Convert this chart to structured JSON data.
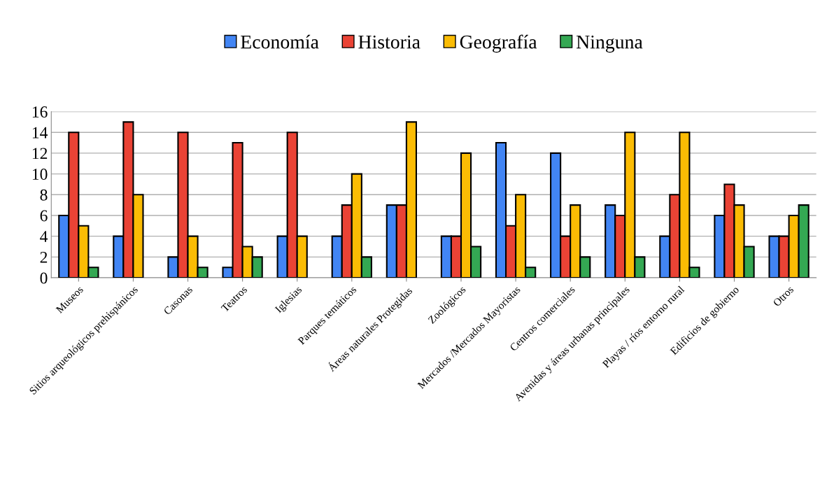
{
  "chart_data": {
    "type": "bar",
    "categories": [
      "Museos",
      "Sitios arqueológicos prehispánicos",
      "Casonas",
      "Teatros",
      "Iglesias",
      "Parques temáticos",
      "Áreas naturales Protegidas",
      "Zoológicos",
      "Mercados /Mercados Mayoristas",
      "Centros comerciales",
      "Avenidas y áreas urbanas principales",
      "Playas / ríos entorno rural",
      "Edificios de gobierno",
      "Otros"
    ],
    "series": [
      {
        "name": "Economía",
        "color": "#4285f4",
        "values": [
          6,
          4,
          2,
          1,
          4,
          4,
          7,
          4,
          13,
          12,
          7,
          4,
          6,
          4
        ]
      },
      {
        "name": "Historia",
        "color": "#ea4335",
        "values": [
          14,
          15,
          14,
          13,
          14,
          7,
          7,
          4,
          5,
          4,
          6,
          8,
          9,
          4
        ]
      },
      {
        "name": "Geografía",
        "color": "#fbbc04",
        "values": [
          5,
          8,
          4,
          3,
          4,
          10,
          15,
          12,
          8,
          7,
          14,
          14,
          7,
          6
        ]
      },
      {
        "name": "Ninguna",
        "color": "#34a853",
        "values": [
          1,
          0,
          1,
          2,
          0,
          2,
          0,
          3,
          1,
          2,
          2,
          1,
          3,
          7
        ]
      }
    ],
    "ylim": [
      0,
      16
    ],
    "yticks": [
      0,
      2,
      4,
      6,
      8,
      10,
      12,
      14,
      16
    ],
    "grid": "y",
    "legend": "top"
  }
}
